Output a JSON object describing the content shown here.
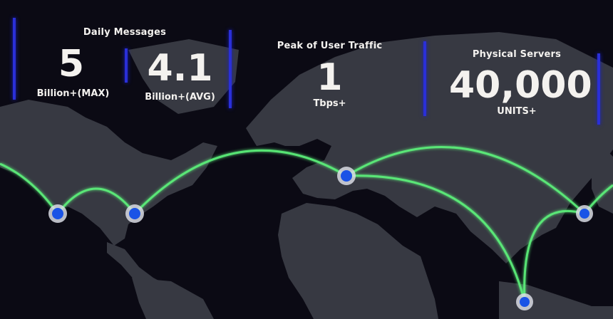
{
  "stats": {
    "daily_messages": {
      "title": "Daily Messages",
      "max_value": "5",
      "max_unit": "Billion+(MAX)",
      "avg_value": "4.1",
      "avg_unit": "Billion+(AVG)"
    },
    "peak_traffic": {
      "title": "Peak of User Traffic",
      "value": "1",
      "unit": "Tbps+"
    },
    "physical_servers": {
      "title": "Physical Servers",
      "value": "40,000",
      "unit": "UNITS+"
    }
  },
  "colors": {
    "background": "#0b0a14",
    "land": "#3a3c45",
    "route_line": "#5cf07a",
    "node_fill": "#1a53e6",
    "divider": "#2a2fd8",
    "text": "#f4f2ef"
  },
  "icons": {
    "node": "location-node-icon",
    "divider": "vertical-divider"
  }
}
